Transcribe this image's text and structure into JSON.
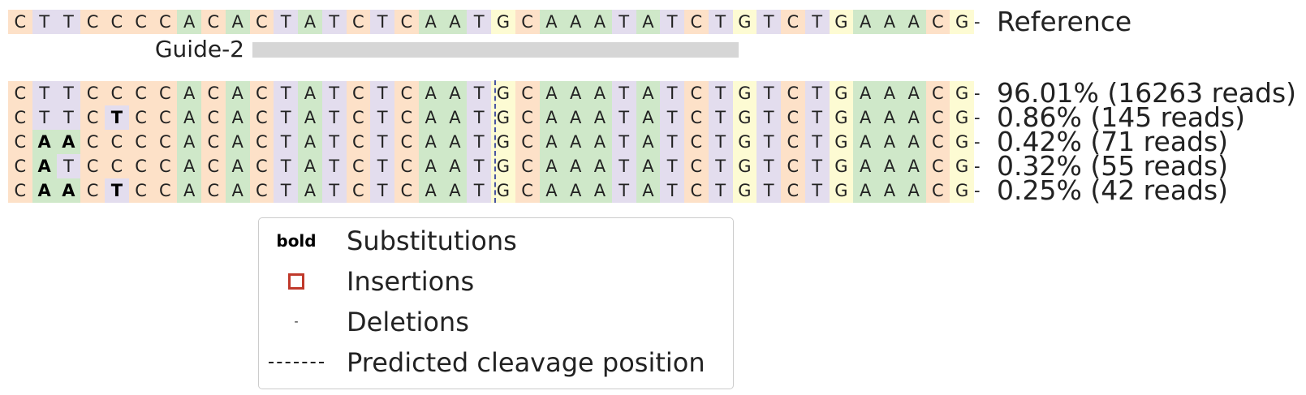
{
  "reference": {
    "label": "Reference",
    "sequence": "CTTCCCCACACTATCTCAATGCAAATATCTGTCTGAAACG",
    "trail": "-"
  },
  "guide": {
    "label": "Guide-2"
  },
  "colors": {
    "A": "#cfe8c9",
    "C": "#fde1c8",
    "T": "#e3ddee",
    "G": "#fdfbd3",
    "cleavage_line": "#4a55a2",
    "insertion_box": "#c0392b"
  },
  "alleles": [
    {
      "sequence": "CTTCCCCACACTATCTCAATGCAAATATCTGTCTGAAACG",
      "substitutions": [],
      "trail": "-",
      "label": "96.01% (16263 reads)"
    },
    {
      "sequence": "CTTCTCCACACTATCTCAATGCAAATATCTGTCTGAAACG",
      "substitutions": [
        4
      ],
      "trail": "-",
      "label": "0.86% (145 reads)"
    },
    {
      "sequence": "CAACCCCACACTATCTCAATGCAAATATCTGTCTGAAACG",
      "substitutions": [
        1,
        2
      ],
      "trail": "-",
      "label": "0.42% (71 reads)"
    },
    {
      "sequence": "CATCCCCACACTATCTCAATGCAAATATCTGTCTGAAACG",
      "substitutions": [
        1
      ],
      "trail": "-",
      "label": "0.32% (55 reads)"
    },
    {
      "sequence": "CAACTCCACACTATCTCAATGCAAATATCTGTCTGAAACG",
      "substitutions": [
        1,
        2,
        4
      ],
      "trail": "-",
      "label": "0.25% (42 reads)"
    }
  ],
  "legend": {
    "bold_symbol": "bold",
    "deletion_symbol": "-",
    "substitutions": "Substitutions",
    "insertions": "Insertions",
    "deletions": "Deletions",
    "cleavage": "Predicted cleavage position"
  }
}
